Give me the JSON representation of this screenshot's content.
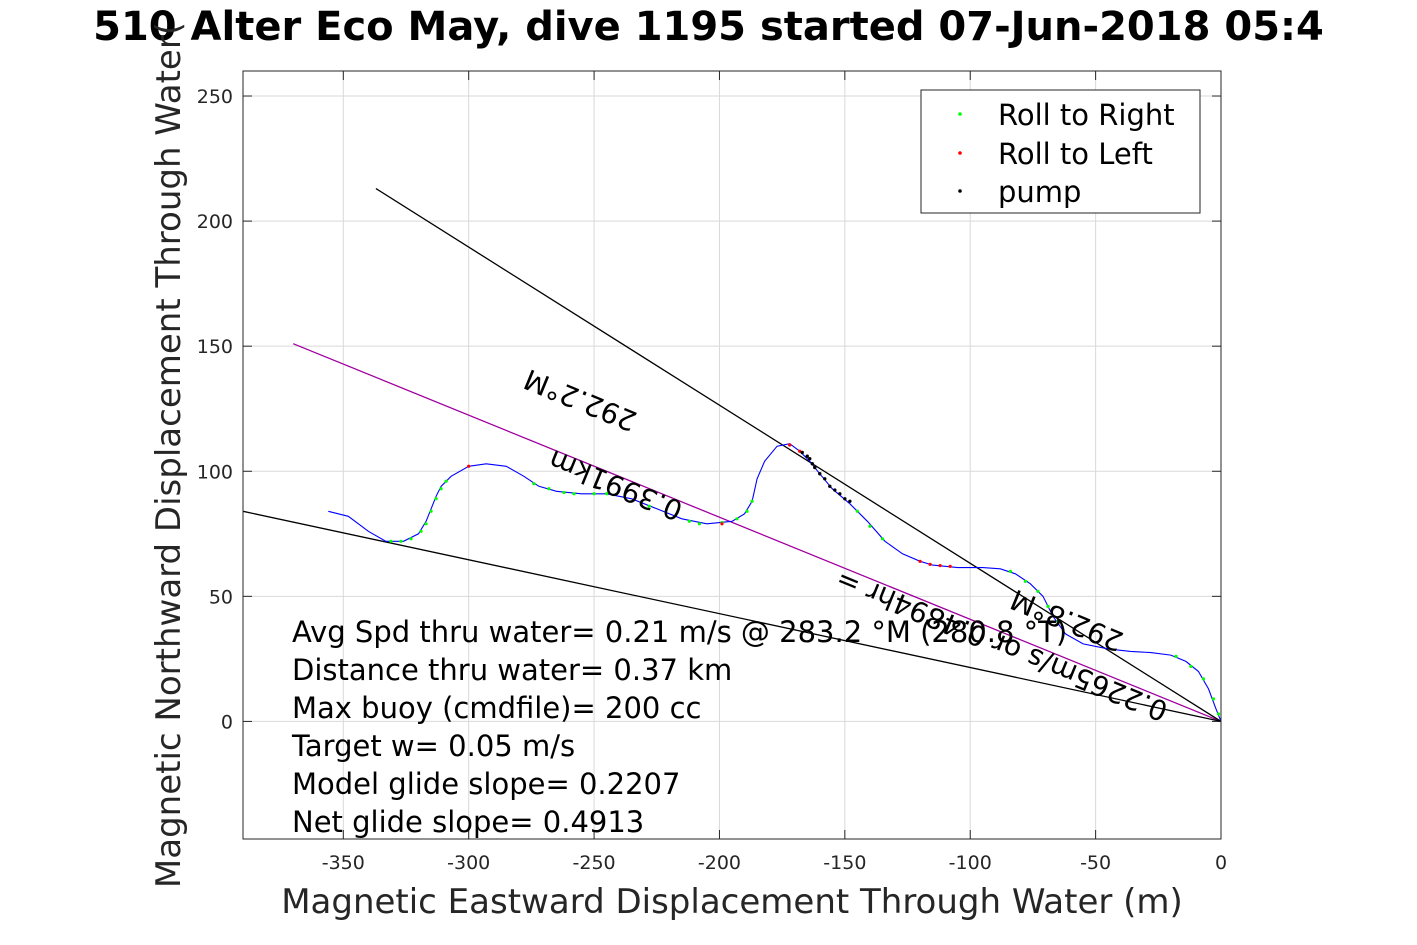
{
  "chart_data": {
    "type": "line",
    "title": "510 Alter Eco May, dive 1195 started 07-Jun-2018 05:4",
    "xlabel": "Magnetic Eastward Displacement Through Water (m)",
    "ylabel": "Magnetic Northward Displacement Through Water(",
    "xlim": [
      -390,
      0
    ],
    "ylim": [
      -47,
      260
    ],
    "xticks": [
      -350,
      -300,
      -250,
      -200,
      -150,
      -100,
      -50,
      0
    ],
    "yticks": [
      0,
      50,
      100,
      150,
      200,
      250
    ],
    "xtick_labels": [
      "-350",
      "-300",
      "-250",
      "-200",
      "-150",
      "-100",
      "-50",
      "0"
    ],
    "ytick_labels": [
      "0",
      "50",
      "100",
      "150",
      "200",
      "250"
    ],
    "grid": true,
    "legend": {
      "position": "top-right",
      "entries": [
        {
          "label": "Roll to Right",
          "color": "#00ff00"
        },
        {
          "label": "Roll to Left",
          "color": "#ff0000"
        },
        {
          "label": "pump",
          "color": "#000000"
        }
      ]
    },
    "track": {
      "color": "#0000ff",
      "points": [
        [
          0,
          0
        ],
        [
          -2,
          5
        ],
        [
          -5,
          13
        ],
        [
          -9,
          20
        ],
        [
          -14,
          24
        ],
        [
          -20,
          26.5
        ],
        [
          -28,
          27.5
        ],
        [
          -36,
          28
        ],
        [
          -45,
          29
        ],
        [
          -55,
          31
        ],
        [
          -62,
          35
        ],
        [
          -67,
          42
        ],
        [
          -71,
          50
        ],
        [
          -76,
          55
        ],
        [
          -82,
          59
        ],
        [
          -88,
          61
        ],
        [
          -95,
          61.5
        ],
        [
          -105,
          61.5
        ],
        [
          -115,
          62.5
        ],
        [
          -120,
          64
        ],
        [
          -127,
          67
        ],
        [
          -134,
          72
        ],
        [
          -141,
          80
        ],
        [
          -148,
          87
        ],
        [
          -155,
          93
        ],
        [
          -160,
          99
        ],
        [
          -164,
          104
        ],
        [
          -168,
          108
        ],
        [
          -172,
          111
        ],
        [
          -177,
          110
        ],
        [
          -182,
          104
        ],
        [
          -185,
          97
        ],
        [
          -187,
          88
        ],
        [
          -190,
          83
        ],
        [
          -195,
          80
        ],
        [
          -205,
          79
        ],
        [
          -215,
          81
        ],
        [
          -225,
          85
        ],
        [
          -235,
          89
        ],
        [
          -245,
          91
        ],
        [
          -255,
          91
        ],
        [
          -265,
          92
        ],
        [
          -272,
          94
        ],
        [
          -278,
          98
        ],
        [
          -285,
          102
        ],
        [
          -293,
          103
        ],
        [
          -300,
          102
        ],
        [
          -307,
          98
        ],
        [
          -311,
          94
        ],
        [
          -313,
          90
        ],
        [
          -315,
          85
        ],
        [
          -317,
          80
        ],
        [
          -320,
          75
        ],
        [
          -326,
          72
        ],
        [
          -333,
          72
        ],
        [
          -340,
          76
        ],
        [
          -348,
          82
        ],
        [
          -356,
          84
        ]
      ]
    },
    "green_markers": [
      [
        -1,
        3
      ],
      [
        -3,
        9
      ],
      [
        -7,
        17
      ],
      [
        -12,
        22
      ],
      [
        -18,
        26
      ],
      [
        -65,
        40
      ],
      [
        -69,
        46
      ],
      [
        -73,
        52
      ],
      [
        -78,
        56
      ],
      [
        -84,
        60
      ],
      [
        -135,
        73
      ],
      [
        -140,
        78
      ],
      [
        -145,
        84
      ],
      [
        -187,
        88
      ],
      [
        -189,
        84
      ],
      [
        -193,
        81
      ],
      [
        -199,
        79.5
      ],
      [
        -208,
        79
      ],
      [
        -212,
        80
      ],
      [
        -228,
        86
      ],
      [
        -245,
        91
      ],
      [
        -250,
        91
      ],
      [
        -258,
        91
      ],
      [
        -262,
        91.5
      ],
      [
        -268,
        93
      ],
      [
        -274,
        95
      ],
      [
        -309,
        96
      ],
      [
        -311,
        93
      ],
      [
        -313,
        89
      ],
      [
        -315,
        84
      ],
      [
        -317,
        79
      ],
      [
        -319,
        76
      ],
      [
        -323,
        73
      ],
      [
        -327,
        72
      ],
      [
        -331,
        72
      ]
    ],
    "red_markers": [
      [
        -108,
        62
      ],
      [
        -112,
        62.3
      ],
      [
        -116,
        62.8
      ],
      [
        -120,
        64
      ],
      [
        -172,
        110.5
      ],
      [
        -168,
        108
      ],
      [
        -199,
        79
      ],
      [
        -300,
        102
      ]
    ],
    "pump_markers": [
      [
        -148,
        88
      ],
      [
        -150,
        89
      ],
      [
        -152,
        91
      ],
      [
        -154,
        92.5
      ],
      [
        -156,
        94
      ],
      [
        -158,
        97
      ],
      [
        -160,
        99
      ],
      [
        -162,
        101.5
      ],
      [
        -163,
        103
      ],
      [
        -164,
        105
      ],
      [
        -165,
        106
      ],
      [
        -167,
        107.5
      ]
    ],
    "reference_lines": [
      {
        "name": "heading",
        "color": "#a000a0",
        "points": [
          [
            0,
            0
          ],
          [
            -370,
            151
          ]
        ]
      },
      {
        "name": "upper",
        "color": "#000000",
        "points": [
          [
            0,
            0
          ],
          [
            -337,
            213
          ]
        ]
      },
      {
        "name": "lower",
        "color": "#000000",
        "points": [
          [
            0,
            0
          ],
          [
            -390,
            84
          ]
        ]
      }
    ],
    "line_labels": [
      {
        "text": "292.2°M",
        "x": -254,
        "y": 132,
        "rotate": 202.3
      },
      {
        "text": "0.3991km",
        "x": -240,
        "y": 98,
        "rotate": 202.3
      },
      {
        "text": "0.2265m/s or 0.4894hr =",
        "x": -86,
        "y": 34,
        "rotate": 202.3
      },
      {
        "text": "292.8°M",
        "x": -60,
        "y": 44,
        "rotate": 202.3
      }
    ],
    "annotations": [
      "Avg Spd thru water=  0.21 m/s @ 283.2 °M (280.8 °T)",
      "Distance thru water=  0.37 km",
      "Max buoy (cmdfile)= 200 cc",
      "Target w= 0.05 m/s",
      "Model glide slope= 0.2207",
      "Net glide slope= 0.4913"
    ]
  }
}
